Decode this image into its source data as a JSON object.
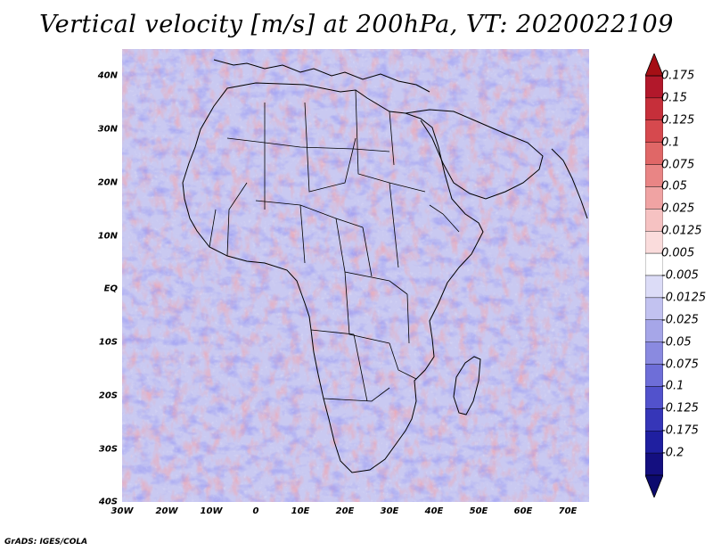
{
  "title": "Vertical velocity [m/s] at 200hPa, VT: 2020022109",
  "credit": "GrADS: IGES/COLA",
  "lat_ticks": [
    "40N",
    "30N",
    "20N",
    "10N",
    "EQ",
    "10S",
    "20S",
    "30S",
    "40S"
  ],
  "lon_ticks": [
    "30W",
    "20W",
    "10W",
    "0",
    "10E",
    "20E",
    "30E",
    "40E",
    "50E",
    "60E",
    "70E"
  ],
  "map": {
    "lon_range": [
      -30,
      75
    ],
    "lat_range": [
      -40,
      45
    ],
    "field": "vertical velocity at 200hPa",
    "units": "m/s"
  },
  "colorbar": {
    "labels": [
      "0.175",
      "0.15",
      "0.125",
      "0.1",
      "0.075",
      "0.05",
      "0.025",
      "0.0125",
      "0.005",
      "-0.005",
      "-0.0125",
      "-0.025",
      "-0.05",
      "-0.075",
      "-0.1",
      "-0.125",
      "-0.175",
      "-0.2"
    ],
    "colors": [
      "#b2182b",
      "#c62f3a",
      "#d6494e",
      "#e06767",
      "#e98585",
      "#f0a3a3",
      "#f6c2c2",
      "#fadcdc",
      "#ffffff",
      "#dcdcf7",
      "#c2c2f0",
      "#a6a6e8",
      "#8a8ae0",
      "#6e6ed8",
      "#5252cc",
      "#3636b8",
      "#1f1fa0",
      "#140f80"
    ],
    "arrow_top_color": "#a50f15",
    "arrow_bottom_color": "#0c0a6e"
  }
}
